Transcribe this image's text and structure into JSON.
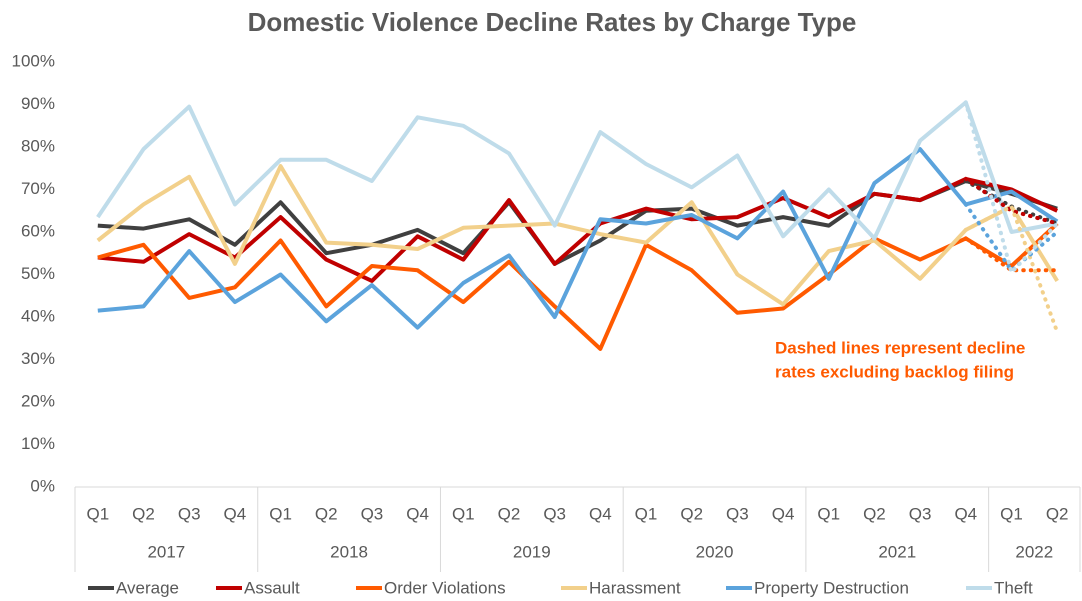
{
  "chart_data": {
    "type": "line",
    "title": "Domestic Violence Decline Rates by Charge Type",
    "categories": [
      "Q1",
      "Q2",
      "Q3",
      "Q4",
      "Q1",
      "Q2",
      "Q3",
      "Q4",
      "Q1",
      "Q2",
      "Q3",
      "Q4",
      "Q1",
      "Q2",
      "Q3",
      "Q4",
      "Q1",
      "Q2",
      "Q3",
      "Q4",
      "Q1",
      "Q2"
    ],
    "years": [
      {
        "label": "2017",
        "span": 4
      },
      {
        "label": "2018",
        "span": 4
      },
      {
        "label": "2019",
        "span": 4
      },
      {
        "label": "2020",
        "span": 4
      },
      {
        "label": "2021",
        "span": 4
      },
      {
        "label": "2022",
        "span": 2
      }
    ],
    "ylim": [
      0,
      100
    ],
    "yticks": [
      {
        "value": 0,
        "label": "0%"
      },
      {
        "value": 10,
        "label": "10%"
      },
      {
        "value": 20,
        "label": "20%"
      },
      {
        "value": 30,
        "label": "30%"
      },
      {
        "value": 40,
        "label": "40%"
      },
      {
        "value": 50,
        "label": "50%"
      },
      {
        "value": 60,
        "label": "60%"
      },
      {
        "value": 70,
        "label": "70%"
      },
      {
        "value": 80,
        "label": "80%"
      },
      {
        "value": 90,
        "label": "90%"
      },
      {
        "value": 100,
        "label": "100%"
      }
    ],
    "grid": false,
    "legend": "bottom",
    "annotation": [
      "Dashed lines represent decline",
      "rates excluding backlog filing"
    ],
    "annotation_color": "#ff5a00",
    "series": [
      {
        "name": "Average",
        "color": "#404040",
        "values": [
          61.5,
          60.8,
          63,
          57,
          67,
          55,
          57,
          60.5,
          55,
          67,
          52.5,
          58,
          65,
          65.5,
          61.5,
          63.5,
          61.5,
          69,
          67.5,
          72,
          69,
          65.5
        ],
        "dashed_values": [
          null,
          null,
          null,
          null,
          null,
          null,
          null,
          null,
          null,
          null,
          null,
          null,
          null,
          null,
          null,
          null,
          null,
          null,
          null,
          72,
          66,
          62
        ]
      },
      {
        "name": "Assault",
        "color": "#c00000",
        "values": [
          54,
          53,
          59.5,
          54,
          63.5,
          53.5,
          48.5,
          59,
          53.5,
          67.5,
          52.5,
          62,
          65.5,
          63,
          63.5,
          68,
          63.5,
          69,
          67.5,
          72.5,
          70,
          65
        ],
        "dashed_values": [
          null,
          null,
          null,
          null,
          null,
          null,
          null,
          null,
          null,
          null,
          null,
          null,
          null,
          null,
          null,
          null,
          null,
          null,
          null,
          72.5,
          65,
          62
        ]
      },
      {
        "name": "Order Violations",
        "color": "#ff5a00",
        "values": [
          54,
          57,
          44.5,
          47,
          58,
          42.5,
          52,
          51,
          43.5,
          53,
          42.5,
          32.5,
          57,
          51,
          41,
          42,
          50,
          58.5,
          53.5,
          58.5,
          52,
          62
        ],
        "dashed_values": [
          null,
          null,
          null,
          null,
          null,
          null,
          null,
          null,
          null,
          null,
          null,
          null,
          null,
          null,
          null,
          null,
          null,
          null,
          null,
          58.5,
          51,
          51
        ]
      },
      {
        "name": "Harassment",
        "color": "#f2d08b",
        "values": [
          58,
          66.5,
          73,
          52.5,
          75.5,
          57.5,
          57,
          56,
          61,
          61.5,
          62,
          59.5,
          57.5,
          67,
          50,
          43,
          55.5,
          58,
          49,
          60.5,
          66,
          48.5
        ],
        "dashed_values": [
          null,
          null,
          null,
          null,
          null,
          null,
          null,
          null,
          null,
          null,
          null,
          null,
          null,
          null,
          null,
          null,
          null,
          null,
          null,
          60.5,
          66,
          36.5
        ]
      },
      {
        "name": "Property Destruction",
        "color": "#5ba3dc",
        "values": [
          41.5,
          42.5,
          55.5,
          43.5,
          50,
          39,
          47.5,
          37.5,
          48,
          54.5,
          40,
          63,
          62,
          64,
          58.5,
          69.5,
          49,
          71.5,
          79.5,
          66.5,
          69.5,
          62.5
        ],
        "dashed_values": [
          null,
          null,
          null,
          null,
          null,
          null,
          null,
          null,
          null,
          null,
          null,
          null,
          null,
          null,
          null,
          null,
          null,
          null,
          null,
          66.5,
          51,
          60
        ]
      },
      {
        "name": "Theft",
        "color": "#bfdcea",
        "values": [
          63.5,
          79.5,
          89.5,
          66.5,
          77,
          77,
          72,
          87,
          85,
          78.5,
          61.5,
          83.5,
          76,
          70.5,
          78,
          59,
          70,
          58.5,
          81.5,
          90.5,
          60,
          62
        ],
        "dashed_values": [
          null,
          null,
          null,
          null,
          null,
          null,
          null,
          null,
          null,
          null,
          null,
          null,
          null,
          null,
          null,
          null,
          null,
          null,
          null,
          90.5,
          50.5,
          62
        ]
      }
    ]
  }
}
